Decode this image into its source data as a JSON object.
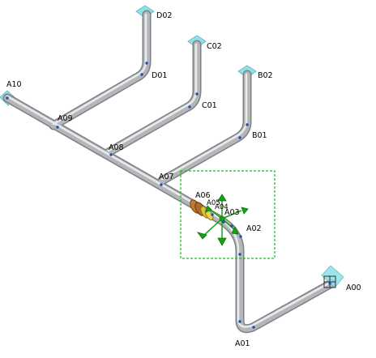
{
  "viewport": {
    "background": "#ffffff"
  },
  "colors": {
    "pipe": "#b4b6b9",
    "pipe_edge": "#7d8084",
    "pipe_highlight": "#eef0f2",
    "node": "#1f4fa8",
    "endpoint": "#8fe0e8",
    "selection_box": "#11c011",
    "gizmo": "#14a514",
    "flange_a": "#c07a34",
    "flange_b": "#e0c23a"
  },
  "icons": {
    "endpoint": "diamond-plate-icon",
    "gizmo": "move-gizmo-icon",
    "box_end": "box-endpoint-icon"
  },
  "labels": {
    "D02": "D02",
    "D01": "D01",
    "C02": "C02",
    "C01": "C01",
    "B02": "B02",
    "B01": "B01",
    "A10": "A10",
    "A09": "A09",
    "A08": "A08",
    "A07": "A07",
    "A06": "A06",
    "A05": "A05",
    "A04": "A04",
    "A03": "A03",
    "A02": "A02",
    "A01": "A01",
    "A00": "A00"
  }
}
